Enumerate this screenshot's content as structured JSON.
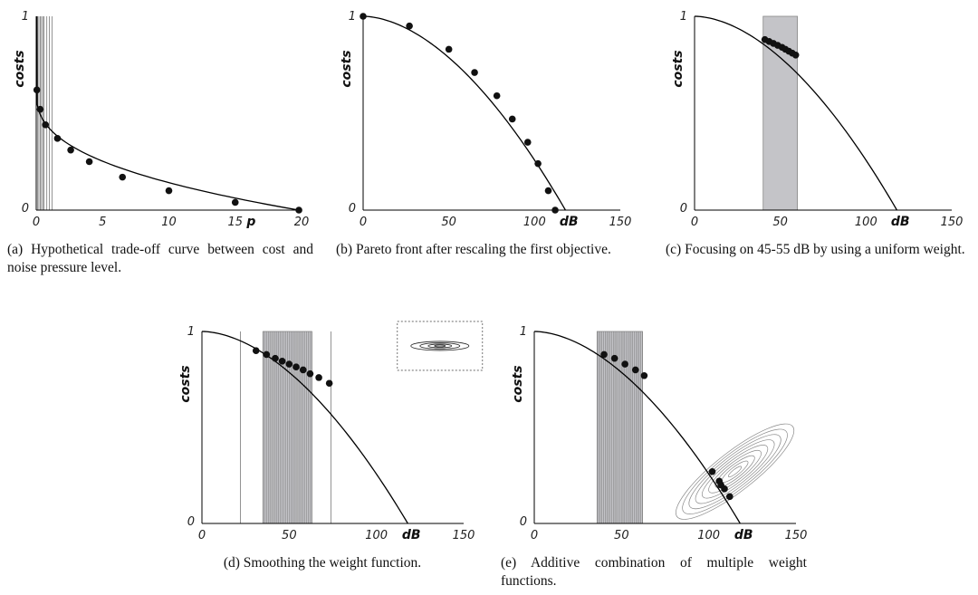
{
  "chart_data": [
    {
      "id": "a",
      "type": "line",
      "caption": "(a) Hypothetical trade-off curve between cost and noise pressure level.",
      "xlabel": "p",
      "ylabel": "costs",
      "xlim": [
        0,
        20
      ],
      "ylim": [
        0,
        1
      ],
      "xticks": [
        "0",
        "5",
        "10",
        "15",
        "20"
      ],
      "yticks": [
        "0",
        "1"
      ],
      "series": [
        {
          "x": [
            0.05,
            0.3,
            0.7,
            1.6,
            2.6,
            4.0,
            6.5,
            10,
            15,
            19.8
          ],
          "values": [
            0.62,
            0.52,
            0.44,
            0.37,
            0.31,
            0.25,
            0.17,
            0.1,
            0.04,
            0.0
          ]
        }
      ],
      "points": {
        "x": [
          0.05,
          0.3,
          0.7,
          1.6,
          2.6,
          4.0,
          6.5,
          10,
          15,
          19.8
        ],
        "y": [
          0.62,
          0.52,
          0.44,
          0.37,
          0.31,
          0.25,
          0.17,
          0.1,
          0.04,
          0.0
        ]
      },
      "vlines": [
        0.1,
        0.2,
        0.3,
        0.4,
        0.5,
        0.6,
        0.8,
        1.0,
        1.2
      ],
      "grid": false
    },
    {
      "id": "b",
      "type": "scatter",
      "caption": "(b) Pareto front after rescaling the first objective.",
      "xlabel": "dB",
      "ylabel": "costs",
      "xlim": [
        0,
        150
      ],
      "ylim": [
        0,
        1
      ],
      "xticks": [
        "0",
        "50",
        "100",
        "150"
      ],
      "yticks": [
        "0",
        "1"
      ],
      "points": {
        "x": [
          0,
          27,
          50,
          65,
          78,
          87,
          96,
          102,
          108,
          112
        ],
        "y": [
          1.0,
          0.95,
          0.83,
          0.71,
          0.59,
          0.47,
          0.35,
          0.24,
          0.1,
          0.0
        ]
      },
      "grid": false
    },
    {
      "id": "c",
      "type": "scatter",
      "caption": "(c) Focusing on 45-55 dB by using a uniform weight.",
      "xlabel": "dB",
      "ylabel": "costs",
      "xlim": [
        0,
        150
      ],
      "ylim": [
        0,
        1
      ],
      "xticks": [
        "0",
        "50",
        "100",
        "150"
      ],
      "yticks": [
        "0",
        "1"
      ],
      "band": [
        40,
        60
      ],
      "points": {
        "x": [
          41,
          43.5,
          46,
          48.5,
          51,
          53,
          55,
          57,
          59
        ],
        "y": [
          0.88,
          0.87,
          0.86,
          0.85,
          0.84,
          0.83,
          0.82,
          0.81,
          0.8
        ]
      },
      "grid": false
    },
    {
      "id": "d",
      "type": "scatter",
      "caption": "(d) Smoothing the weight function.",
      "xlabel": "dB",
      "ylabel": "costs",
      "xlim": [
        0,
        150
      ],
      "ylim": [
        0,
        1
      ],
      "xticks": [
        "0",
        "50",
        "100",
        "150"
      ],
      "yticks": [
        "0",
        "1"
      ],
      "band": [
        35,
        63
      ],
      "vlines": [
        22,
        74
      ],
      "inset": true,
      "points": {
        "x": [
          31,
          37,
          42,
          46,
          50,
          54,
          58,
          62,
          67,
          73
        ],
        "y": [
          0.9,
          0.88,
          0.86,
          0.845,
          0.83,
          0.815,
          0.8,
          0.78,
          0.76,
          0.73
        ]
      },
      "grid": false
    },
    {
      "id": "e",
      "type": "scatter",
      "caption": "(e) Additive combination of multiple weight functions.",
      "xlabel": "dB",
      "ylabel": "costs",
      "xlim": [
        0,
        150
      ],
      "ylim": [
        0,
        1
      ],
      "xticks": [
        "0",
        "50",
        "100",
        "150"
      ],
      "yticks": [
        "0",
        "1"
      ],
      "band": [
        36,
        62
      ],
      "ellipse_center": [
        115,
        0.27
      ],
      "points": {
        "x": [
          40,
          46,
          52,
          58,
          63,
          102,
          106,
          107,
          109,
          112
        ],
        "y": [
          0.88,
          0.86,
          0.83,
          0.8,
          0.77,
          0.27,
          0.22,
          0.2,
          0.18,
          0.14
        ]
      },
      "grid": false
    }
  ]
}
